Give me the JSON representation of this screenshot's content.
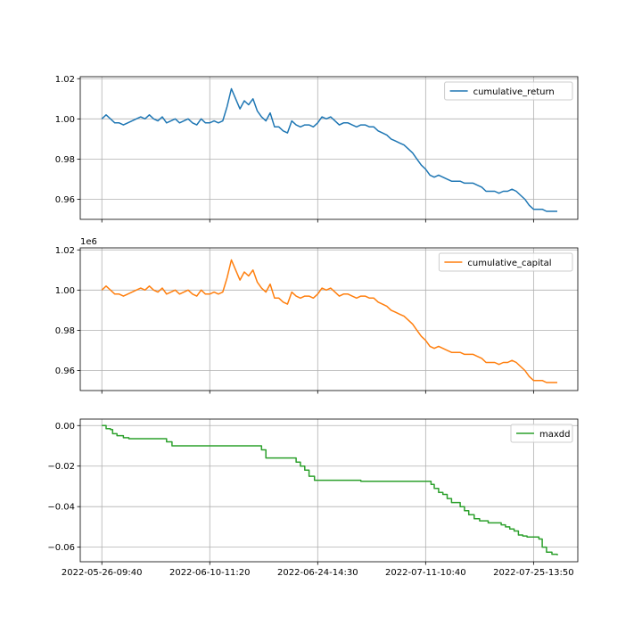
{
  "chart_data": [
    {
      "type": "line",
      "offset_text": "",
      "ylim": [
        0.95,
        1.021
      ],
      "yticks": [
        0.96,
        0.98,
        1.0,
        1.02
      ],
      "ytick_labels": [
        "0.96",
        "0.98",
        "1.00",
        "1.02"
      ],
      "xticks": [
        "2022-05-26-09:40",
        "2022-06-10-11:20",
        "2022-06-24-14:30",
        "2022-07-11-10:40",
        "2022-07-25-13:50"
      ],
      "show_xtick_labels": false,
      "grid": true,
      "legend": "top-right",
      "series": [
        {
          "name": "cumulative_return",
          "color": "#1f77b4",
          "step": false,
          "x": [
            0.0,
            0.04,
            0.08,
            0.12,
            0.16,
            0.2,
            0.24,
            0.28,
            0.32,
            0.36,
            0.4,
            0.44,
            0.48,
            0.52,
            0.56,
            0.6,
            0.64,
            0.68,
            0.72,
            0.76,
            0.8,
            0.84,
            0.88,
            0.92,
            0.96,
            1.0,
            1.04,
            1.08,
            1.12,
            1.16,
            1.2,
            1.24,
            1.28,
            1.32,
            1.36,
            1.4,
            1.44,
            1.48,
            1.52,
            1.56,
            1.6,
            1.64,
            1.68,
            1.72,
            1.76,
            1.8,
            1.84,
            1.88,
            1.92,
            1.96,
            2.0,
            2.04,
            2.08,
            2.12,
            2.16,
            2.2,
            2.24,
            2.28,
            2.32,
            2.36,
            2.4,
            2.44,
            2.48,
            2.52,
            2.56,
            2.6,
            2.64,
            2.68,
            2.72,
            2.76,
            2.8,
            2.84,
            2.88,
            2.92,
            2.96,
            3.0,
            3.04,
            3.08,
            3.12,
            3.16,
            3.2,
            3.24,
            3.28,
            3.32,
            3.36,
            3.4,
            3.44,
            3.48,
            3.52,
            3.56,
            3.6,
            3.64,
            3.68,
            3.72,
            3.76,
            3.8,
            3.84,
            3.88,
            3.92,
            3.96,
            4.0,
            4.04,
            4.08,
            4.12,
            4.16,
            4.2,
            4.22
          ],
          "values": [
            1.0,
            1.002,
            1.0,
            0.998,
            0.998,
            0.997,
            0.998,
            0.999,
            1.0,
            1.001,
            1.0,
            1.002,
            1.0,
            0.999,
            1.001,
            0.998,
            0.999,
            1.0,
            0.998,
            0.999,
            1.0,
            0.998,
            0.997,
            1.0,
            0.998,
            0.998,
            0.999,
            0.998,
            0.999,
            1.006,
            1.015,
            1.01,
            1.005,
            1.009,
            1.007,
            1.01,
            1.004,
            1.001,
            0.999,
            1.003,
            0.996,
            0.996,
            0.994,
            0.993,
            0.999,
            0.997,
            0.996,
            0.997,
            0.997,
            0.996,
            0.998,
            1.001,
            1.0,
            1.001,
            0.999,
            0.997,
            0.998,
            0.998,
            0.997,
            0.996,
            0.997,
            0.997,
            0.996,
            0.996,
            0.994,
            0.993,
            0.992,
            0.99,
            0.989,
            0.988,
            0.987,
            0.985,
            0.983,
            0.98,
            0.977,
            0.975,
            0.972,
            0.971,
            0.972,
            0.971,
            0.97,
            0.969,
            0.969,
            0.969,
            0.968,
            0.968,
            0.968,
            0.967,
            0.966,
            0.964,
            0.964,
            0.964,
            0.963,
            0.964,
            0.964,
            0.965,
            0.964,
            0.962,
            0.96,
            0.957,
            0.955,
            0.955,
            0.955,
            0.954,
            0.954,
            0.954,
            0.954
          ]
        }
      ]
    },
    {
      "type": "line",
      "offset_text": "1e6",
      "ylim": [
        0.95,
        1.021
      ],
      "yticks": [
        0.96,
        0.98,
        1.0,
        1.02
      ],
      "ytick_labels": [
        "0.96",
        "0.98",
        "1.00",
        "1.02"
      ],
      "xticks": [
        "2022-05-26-09:40",
        "2022-06-10-11:20",
        "2022-06-24-14:30",
        "2022-07-11-10:40",
        "2022-07-25-13:50"
      ],
      "show_xtick_labels": false,
      "grid": true,
      "legend": "top-right",
      "series": [
        {
          "name": "cumulative_capital",
          "color": "#ff7f0e",
          "step": false,
          "x": [
            0.0,
            0.04,
            0.08,
            0.12,
            0.16,
            0.2,
            0.24,
            0.28,
            0.32,
            0.36,
            0.4,
            0.44,
            0.48,
            0.52,
            0.56,
            0.6,
            0.64,
            0.68,
            0.72,
            0.76,
            0.8,
            0.84,
            0.88,
            0.92,
            0.96,
            1.0,
            1.04,
            1.08,
            1.12,
            1.16,
            1.2,
            1.24,
            1.28,
            1.32,
            1.36,
            1.4,
            1.44,
            1.48,
            1.52,
            1.56,
            1.6,
            1.64,
            1.68,
            1.72,
            1.76,
            1.8,
            1.84,
            1.88,
            1.92,
            1.96,
            2.0,
            2.04,
            2.08,
            2.12,
            2.16,
            2.2,
            2.24,
            2.28,
            2.32,
            2.36,
            2.4,
            2.44,
            2.48,
            2.52,
            2.56,
            2.6,
            2.64,
            2.68,
            2.72,
            2.76,
            2.8,
            2.84,
            2.88,
            2.92,
            2.96,
            3.0,
            3.04,
            3.08,
            3.12,
            3.16,
            3.2,
            3.24,
            3.28,
            3.32,
            3.36,
            3.4,
            3.44,
            3.48,
            3.52,
            3.56,
            3.6,
            3.64,
            3.68,
            3.72,
            3.76,
            3.8,
            3.84,
            3.88,
            3.92,
            3.96,
            4.0,
            4.04,
            4.08,
            4.12,
            4.16,
            4.2,
            4.22
          ],
          "values": [
            1.0,
            1.002,
            1.0,
            0.998,
            0.998,
            0.997,
            0.998,
            0.999,
            1.0,
            1.001,
            1.0,
            1.002,
            1.0,
            0.999,
            1.001,
            0.998,
            0.999,
            1.0,
            0.998,
            0.999,
            1.0,
            0.998,
            0.997,
            1.0,
            0.998,
            0.998,
            0.999,
            0.998,
            0.999,
            1.006,
            1.015,
            1.01,
            1.005,
            1.009,
            1.007,
            1.01,
            1.004,
            1.001,
            0.999,
            1.003,
            0.996,
            0.996,
            0.994,
            0.993,
            0.999,
            0.997,
            0.996,
            0.997,
            0.997,
            0.996,
            0.998,
            1.001,
            1.0,
            1.001,
            0.999,
            0.997,
            0.998,
            0.998,
            0.997,
            0.996,
            0.997,
            0.997,
            0.996,
            0.996,
            0.994,
            0.993,
            0.992,
            0.99,
            0.989,
            0.988,
            0.987,
            0.985,
            0.983,
            0.98,
            0.977,
            0.975,
            0.972,
            0.971,
            0.972,
            0.971,
            0.97,
            0.969,
            0.969,
            0.969,
            0.968,
            0.968,
            0.968,
            0.967,
            0.966,
            0.964,
            0.964,
            0.964,
            0.963,
            0.964,
            0.964,
            0.965,
            0.964,
            0.962,
            0.96,
            0.957,
            0.955,
            0.955,
            0.955,
            0.954,
            0.954,
            0.954,
            0.954
          ]
        }
      ]
    },
    {
      "type": "line",
      "offset_text": "",
      "ylim": [
        -0.0672,
        0.0032
      ],
      "yticks": [
        -0.06,
        -0.04,
        -0.02,
        0.0
      ],
      "ytick_labels": [
        "−0.06",
        "−0.04",
        "−0.02",
        "0.00"
      ],
      "xticks": [
        "2022-05-26-09:40",
        "2022-06-10-11:20",
        "2022-06-24-14:30",
        "2022-07-11-10:40",
        "2022-07-25-13:50"
      ],
      "show_xtick_labels": true,
      "grid": true,
      "legend": "top-right",
      "series": [
        {
          "name": "maxdd",
          "color": "#2ca02c",
          "step": true,
          "x": [
            0.0,
            0.04,
            0.08,
            0.1,
            0.14,
            0.2,
            0.25,
            0.55,
            0.6,
            0.65,
            1.45,
            1.48,
            1.52,
            1.7,
            1.8,
            1.84,
            1.88,
            1.92,
            1.97,
            2.4,
            3.0,
            3.05,
            3.08,
            3.12,
            3.16,
            3.2,
            3.24,
            3.32,
            3.36,
            3.4,
            3.45,
            3.5,
            3.58,
            3.7,
            3.74,
            3.78,
            3.82,
            3.86,
            3.9,
            3.94,
            4.05,
            4.08,
            4.12,
            4.17,
            4.22
          ],
          "values": [
            0.0,
            -0.0015,
            -0.002,
            -0.004,
            -0.005,
            -0.006,
            -0.0065,
            -0.0065,
            -0.008,
            -0.01,
            -0.01,
            -0.012,
            -0.016,
            -0.016,
            -0.018,
            -0.02,
            -0.022,
            -0.025,
            -0.027,
            -0.0275,
            -0.0275,
            -0.029,
            -0.031,
            -0.033,
            -0.034,
            -0.036,
            -0.038,
            -0.04,
            -0.042,
            -0.044,
            -0.046,
            -0.047,
            -0.048,
            -0.049,
            -0.05,
            -0.051,
            -0.052,
            -0.054,
            -0.0545,
            -0.055,
            -0.056,
            -0.06,
            -0.0625,
            -0.0635,
            -0.064
          ]
        }
      ]
    }
  ]
}
